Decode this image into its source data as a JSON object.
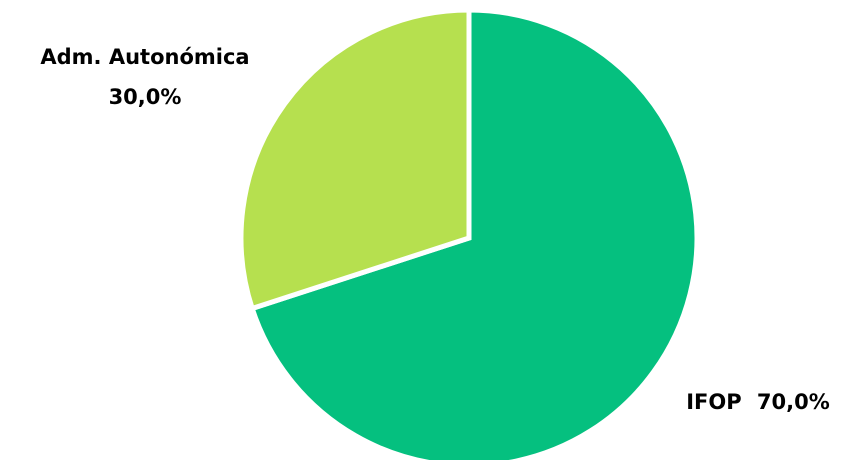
{
  "chart_data": {
    "type": "pie",
    "categories": [
      "IFOP",
      "Adm. Autonómica"
    ],
    "values": [
      70.0,
      30.0
    ],
    "value_labels": [
      "70,0%",
      "30,0%"
    ],
    "colors": [
      "#05c07f",
      "#b6e04f"
    ],
    "labels": {
      "ifop": {
        "name": "IFOP",
        "value": "70,0%"
      },
      "adm": {
        "name": "Adm. Autonómica",
        "value": "30,0%"
      }
    },
    "start": "12 o'clock",
    "direction": "clockwise",
    "legend": "none"
  }
}
